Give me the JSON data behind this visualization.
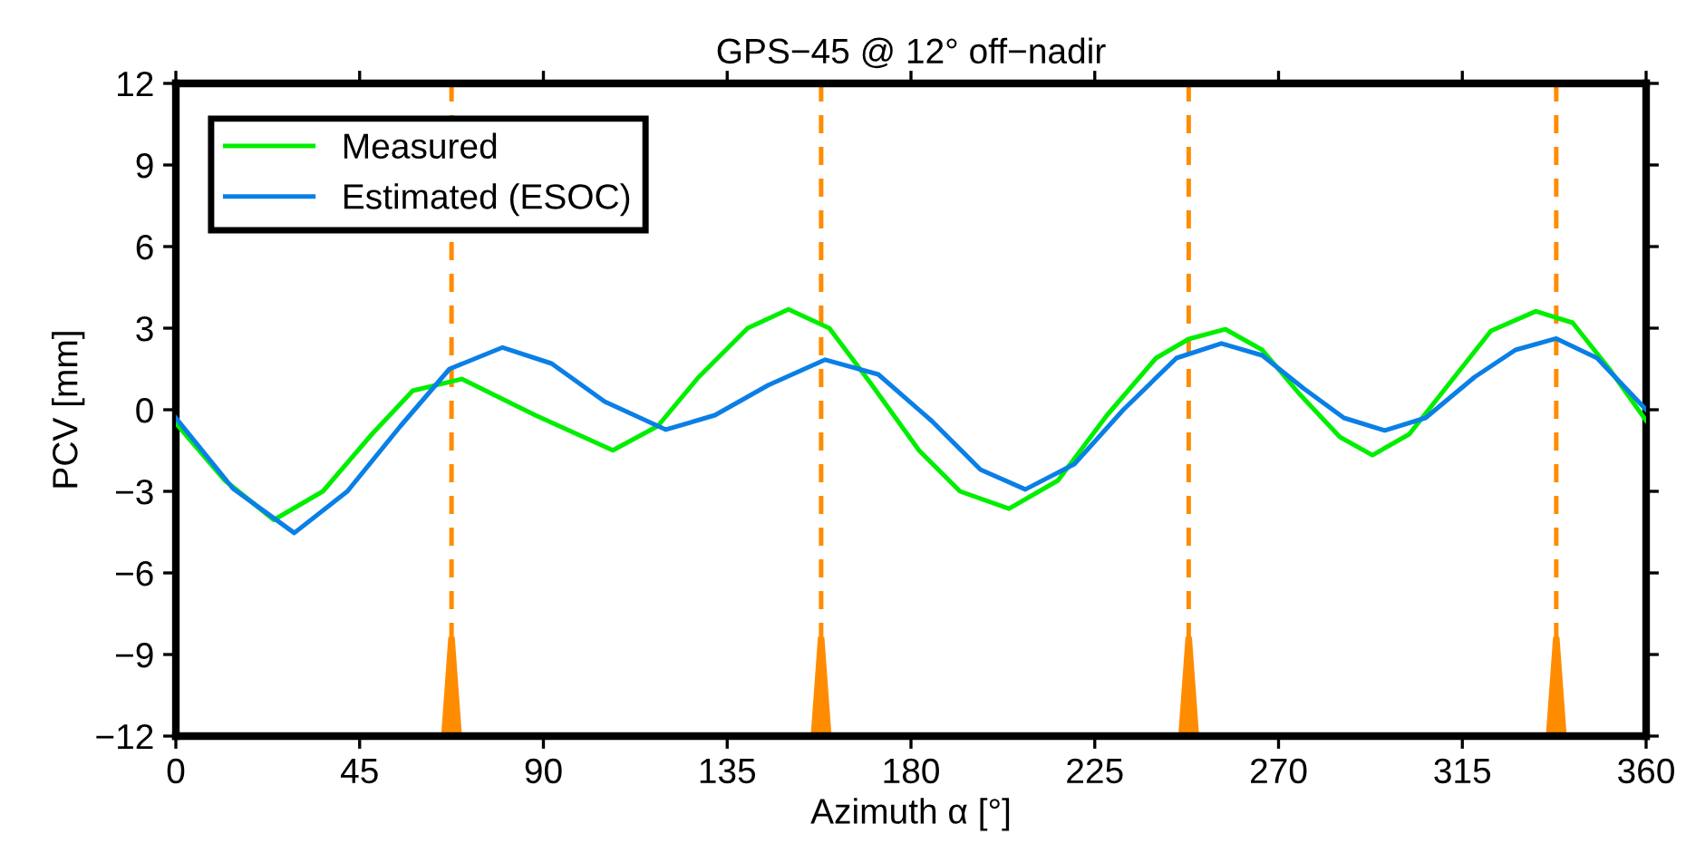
{
  "chart_data": {
    "type": "line",
    "title": "GPS−45 @ 12° off−nadir",
    "xlabel": "Azimuth α [°]",
    "ylabel": "PCV [mm]",
    "xlim": [
      0,
      360
    ],
    "ylim": [
      -12,
      12
    ],
    "xticks": [
      0,
      45,
      90,
      135,
      180,
      225,
      270,
      315,
      360
    ],
    "yticks": [
      {
        "value": -12,
        "label": "−12"
      },
      {
        "value": -9,
        "label": "−9"
      },
      {
        "value": -6,
        "label": "−6"
      },
      {
        "value": -3,
        "label": "−3"
      },
      0,
      3,
      6,
      9,
      12
    ],
    "grid": false,
    "legend": "top left",
    "marker": "none",
    "line_style": "solid",
    "series": [
      {
        "name": "Measured",
        "color": "#00ee00",
        "x": [
          0,
          12,
          24,
          36,
          48,
          58,
          70,
          88,
          107,
          118,
          128,
          140,
          150,
          160,
          170,
          182,
          192,
          204,
          216,
          228,
          240,
          248,
          257,
          266,
          275,
          285,
          293,
          302,
          312,
          322,
          333,
          342,
          351,
          360
        ],
        "values": [
          -0.5,
          -2.6,
          -4.05,
          -3.0,
          -0.9,
          0.7,
          1.13,
          -0.2,
          -1.49,
          -0.6,
          1.2,
          3.0,
          3.69,
          3.0,
          1.0,
          -1.5,
          -3.0,
          -3.64,
          -2.6,
          -0.2,
          1.9,
          2.6,
          2.96,
          2.2,
          0.6,
          -1.0,
          -1.67,
          -0.9,
          1.0,
          2.9,
          3.62,
          3.2,
          1.5,
          -0.4
        ]
      },
      {
        "name": "Estimated (ESOC)",
        "color": "#0a7fe6",
        "x": [
          0,
          14,
          29,
          42,
          55,
          67,
          80,
          92,
          105,
          120,
          132,
          145,
          159,
          172,
          185,
          197,
          208,
          220,
          232,
          245,
          256,
          266,
          276,
          286,
          296,
          306,
          318,
          328,
          338,
          348,
          360
        ],
        "values": [
          -0.3,
          -2.9,
          -4.53,
          -3.0,
          -0.6,
          1.5,
          2.29,
          1.7,
          0.3,
          -0.73,
          -0.2,
          0.9,
          1.84,
          1.3,
          -0.4,
          -2.2,
          -2.93,
          -2.0,
          0.0,
          1.9,
          2.44,
          2.0,
          0.8,
          -0.3,
          -0.76,
          -0.3,
          1.2,
          2.2,
          2.62,
          1.9,
          0.0
        ]
      }
    ],
    "ref_lines": [
      {
        "axis": "x",
        "value": 67.5,
        "color": "#ff8c00",
        "line_style": "dashed"
      },
      {
        "axis": "x",
        "value": 158,
        "color": "#ff8c00",
        "line_style": "dashed"
      },
      {
        "axis": "x",
        "value": 248,
        "color": "#ff8c00",
        "line_style": "dashed"
      },
      {
        "axis": "x",
        "value": 338,
        "color": "#ff8c00",
        "line_style": "dashed"
      }
    ]
  }
}
